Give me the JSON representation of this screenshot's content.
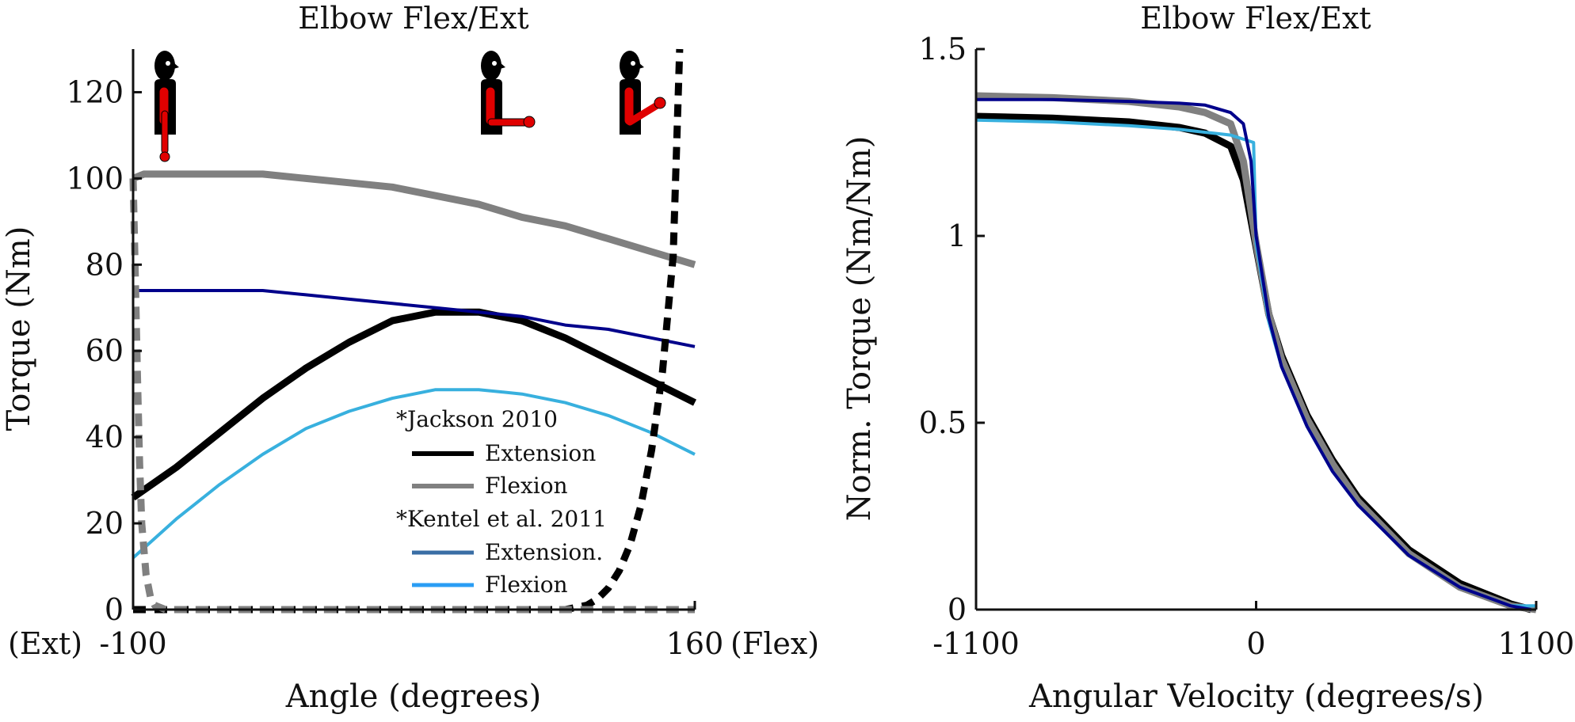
{
  "figures": {
    "left_title": "Elbow Flex/Ext",
    "right_title": "Elbow Flex/Ext",
    "left_ext_label": "(Ext)",
    "left_flex_label": "(Flex)"
  },
  "colors": {
    "jackson_extension": "#000000",
    "jackson_flexion": "#808080",
    "kentel_extension": "#00008b",
    "kentel_flexion": "#38b0de",
    "legend_kentel_extension": "#3a6ea5",
    "legend_kentel_flexion": "#2a9df4",
    "figure_red": "#e00000"
  },
  "icons": [
    "arm-extended-figure-icon",
    "arm-90-flexed-figure-icon",
    "arm-flexed-figure-icon"
  ],
  "chart_data": [
    {
      "type": "line",
      "title": "Elbow Flex/Ext",
      "xlabel": "Angle (degrees)",
      "ylabel": "Torque (Nm)",
      "xlim": [
        -100,
        160
      ],
      "ylim": [
        0,
        130
      ],
      "xticks": [
        -100,
        160
      ],
      "xtick_labels": [
        "-100",
        "160"
      ],
      "yticks": [
        0,
        20,
        40,
        60,
        80,
        100,
        120
      ],
      "ytick_labels": [
        "0",
        "20",
        "40",
        "60",
        "80",
        "100",
        "120"
      ],
      "grid": false,
      "legend_position": "bottom-center",
      "legend_groups": [
        {
          "title": "*Jackson 2010",
          "entries": [
            {
              "label": "Extension",
              "series": 0,
              "swatch_color_key": "jackson_extension"
            },
            {
              "label": "Flexion",
              "series": 1,
              "swatch_color_key": "jackson_flexion"
            }
          ]
        },
        {
          "title": "*Kentel et al. 2011",
          "entries": [
            {
              "label": "Extension.",
              "series": 2,
              "swatch_color_key": "legend_kentel_extension"
            },
            {
              "label": "Flexion",
              "series": 3,
              "swatch_color_key": "legend_kentel_flexion"
            }
          ]
        }
      ],
      "series": [
        {
          "name": "Extension",
          "color_key": "jackson_extension",
          "width": "thick",
          "x": [
            -100,
            -80,
            -60,
            -40,
            -20,
            0,
            20,
            40,
            60,
            80,
            100,
            120,
            140,
            160
          ],
          "y": [
            26,
            33,
            41,
            49,
            56,
            62,
            67,
            69,
            69,
            67,
            63,
            58,
            53,
            48
          ]
        },
        {
          "name": "Flexion",
          "color_key": "jackson_flexion",
          "width": "thick",
          "x": [
            -100,
            -95,
            -80,
            -60,
            -40,
            -20,
            0,
            20,
            40,
            60,
            80,
            100,
            120,
            140,
            160
          ],
          "y": [
            100,
            101,
            101,
            101,
            101,
            100,
            99,
            98,
            96,
            94,
            91,
            89,
            86,
            83,
            80
          ]
        },
        {
          "name": "Extension.",
          "color_key": "kentel_extension",
          "width": "thin",
          "x": [
            -100,
            -80,
            -60,
            -40,
            -20,
            0,
            20,
            40,
            60,
            80,
            100,
            120,
            140,
            160
          ],
          "y": [
            74,
            74,
            74,
            74,
            73,
            72,
            71,
            70,
            69,
            68,
            66,
            65,
            63,
            61
          ]
        },
        {
          "name": "Flexion",
          "color_key": "kentel_flexion",
          "width": "thin",
          "x": [
            -100,
            -80,
            -60,
            -40,
            -20,
            0,
            20,
            40,
            60,
            80,
            100,
            120,
            140,
            160
          ],
          "y": [
            12,
            21,
            29,
            36,
            42,
            46,
            49,
            51,
            51,
            50,
            48,
            45,
            41,
            36
          ]
        },
        {
          "color_key": "jackson_extension",
          "style": "dashed",
          "x": [
            -100,
            -96,
            100,
            105,
            110,
            115,
            120,
            125,
            130,
            135,
            140,
            145,
            150,
            153
          ],
          "y": [
            0,
            0,
            0,
            0.5,
            1,
            2.5,
            5,
            9,
            15,
            24,
            37,
            55,
            82,
            130
          ]
        },
        {
          "color_key": "jackson_flexion",
          "style": "dashed",
          "x": [
            -100,
            -99,
            -98,
            -97,
            -96,
            -94,
            -92,
            -90,
            -85,
            160
          ],
          "y": [
            100,
            78,
            54,
            34,
            20,
            8,
            3,
            1,
            0,
            0
          ]
        }
      ]
    },
    {
      "type": "line",
      "title": "Elbow Flex/Ext",
      "xlabel": "Angular Velocity (degrees/s)",
      "ylabel": "Norm. Torque (Nm/Nm)",
      "xlim": [
        -1100,
        1100
      ],
      "ylim": [
        0,
        1.5
      ],
      "xticks": [
        -1100,
        0,
        1100
      ],
      "xtick_labels": [
        "-1100",
        "0",
        "1100"
      ],
      "yticks": [
        0,
        0.5,
        1,
        1.5
      ],
      "ytick_labels": [
        "0",
        "0.5",
        "1",
        "1.5"
      ],
      "grid": false,
      "series": [
        {
          "color_key": "jackson_extension",
          "width": "thick",
          "x": [
            -1100,
            -800,
            -500,
            -300,
            -200,
            -100,
            -50,
            0,
            50,
            100,
            200,
            300,
            400,
            600,
            800,
            1000,
            1080
          ],
          "y": [
            1.32,
            1.315,
            1.305,
            1.29,
            1.275,
            1.24,
            1.15,
            0.97,
            0.79,
            0.68,
            0.52,
            0.4,
            0.3,
            0.16,
            0.07,
            0.015,
            0
          ]
        },
        {
          "color_key": "jackson_flexion",
          "width": "thick",
          "x": [
            -1100,
            -800,
            -500,
            -300,
            -200,
            -100,
            -50,
            0,
            50,
            100,
            200,
            300,
            400,
            600,
            800,
            1000,
            1100
          ],
          "y": [
            1.375,
            1.37,
            1.36,
            1.345,
            1.33,
            1.3,
            1.2,
            0.98,
            0.79,
            0.67,
            0.51,
            0.39,
            0.29,
            0.15,
            0.06,
            0.01,
            0
          ]
        },
        {
          "color_key": "kentel_flexion",
          "width": "thin",
          "x": [
            -1100,
            -800,
            -500,
            -300,
            -100,
            -10,
            0,
            50,
            100,
            200,
            300,
            400,
            600,
            800,
            1000,
            1100
          ],
          "y": [
            1.31,
            1.305,
            1.295,
            1.285,
            1.27,
            1.25,
            0.98,
            0.77,
            0.65,
            0.49,
            0.37,
            0.28,
            0.145,
            0.06,
            0.01,
            0.01
          ]
        },
        {
          "color_key": "kentel_extension",
          "width": "thin",
          "x": [
            -1100,
            -800,
            -500,
            -300,
            -200,
            -100,
            -50,
            -20,
            0,
            50,
            100,
            200,
            300,
            400,
            600,
            800,
            1000,
            1080
          ],
          "y": [
            1.365,
            1.365,
            1.36,
            1.355,
            1.35,
            1.33,
            1.3,
            1.2,
            1.0,
            0.78,
            0.65,
            0.49,
            0.37,
            0.28,
            0.145,
            0.06,
            0.01,
            0
          ]
        }
      ]
    }
  ]
}
